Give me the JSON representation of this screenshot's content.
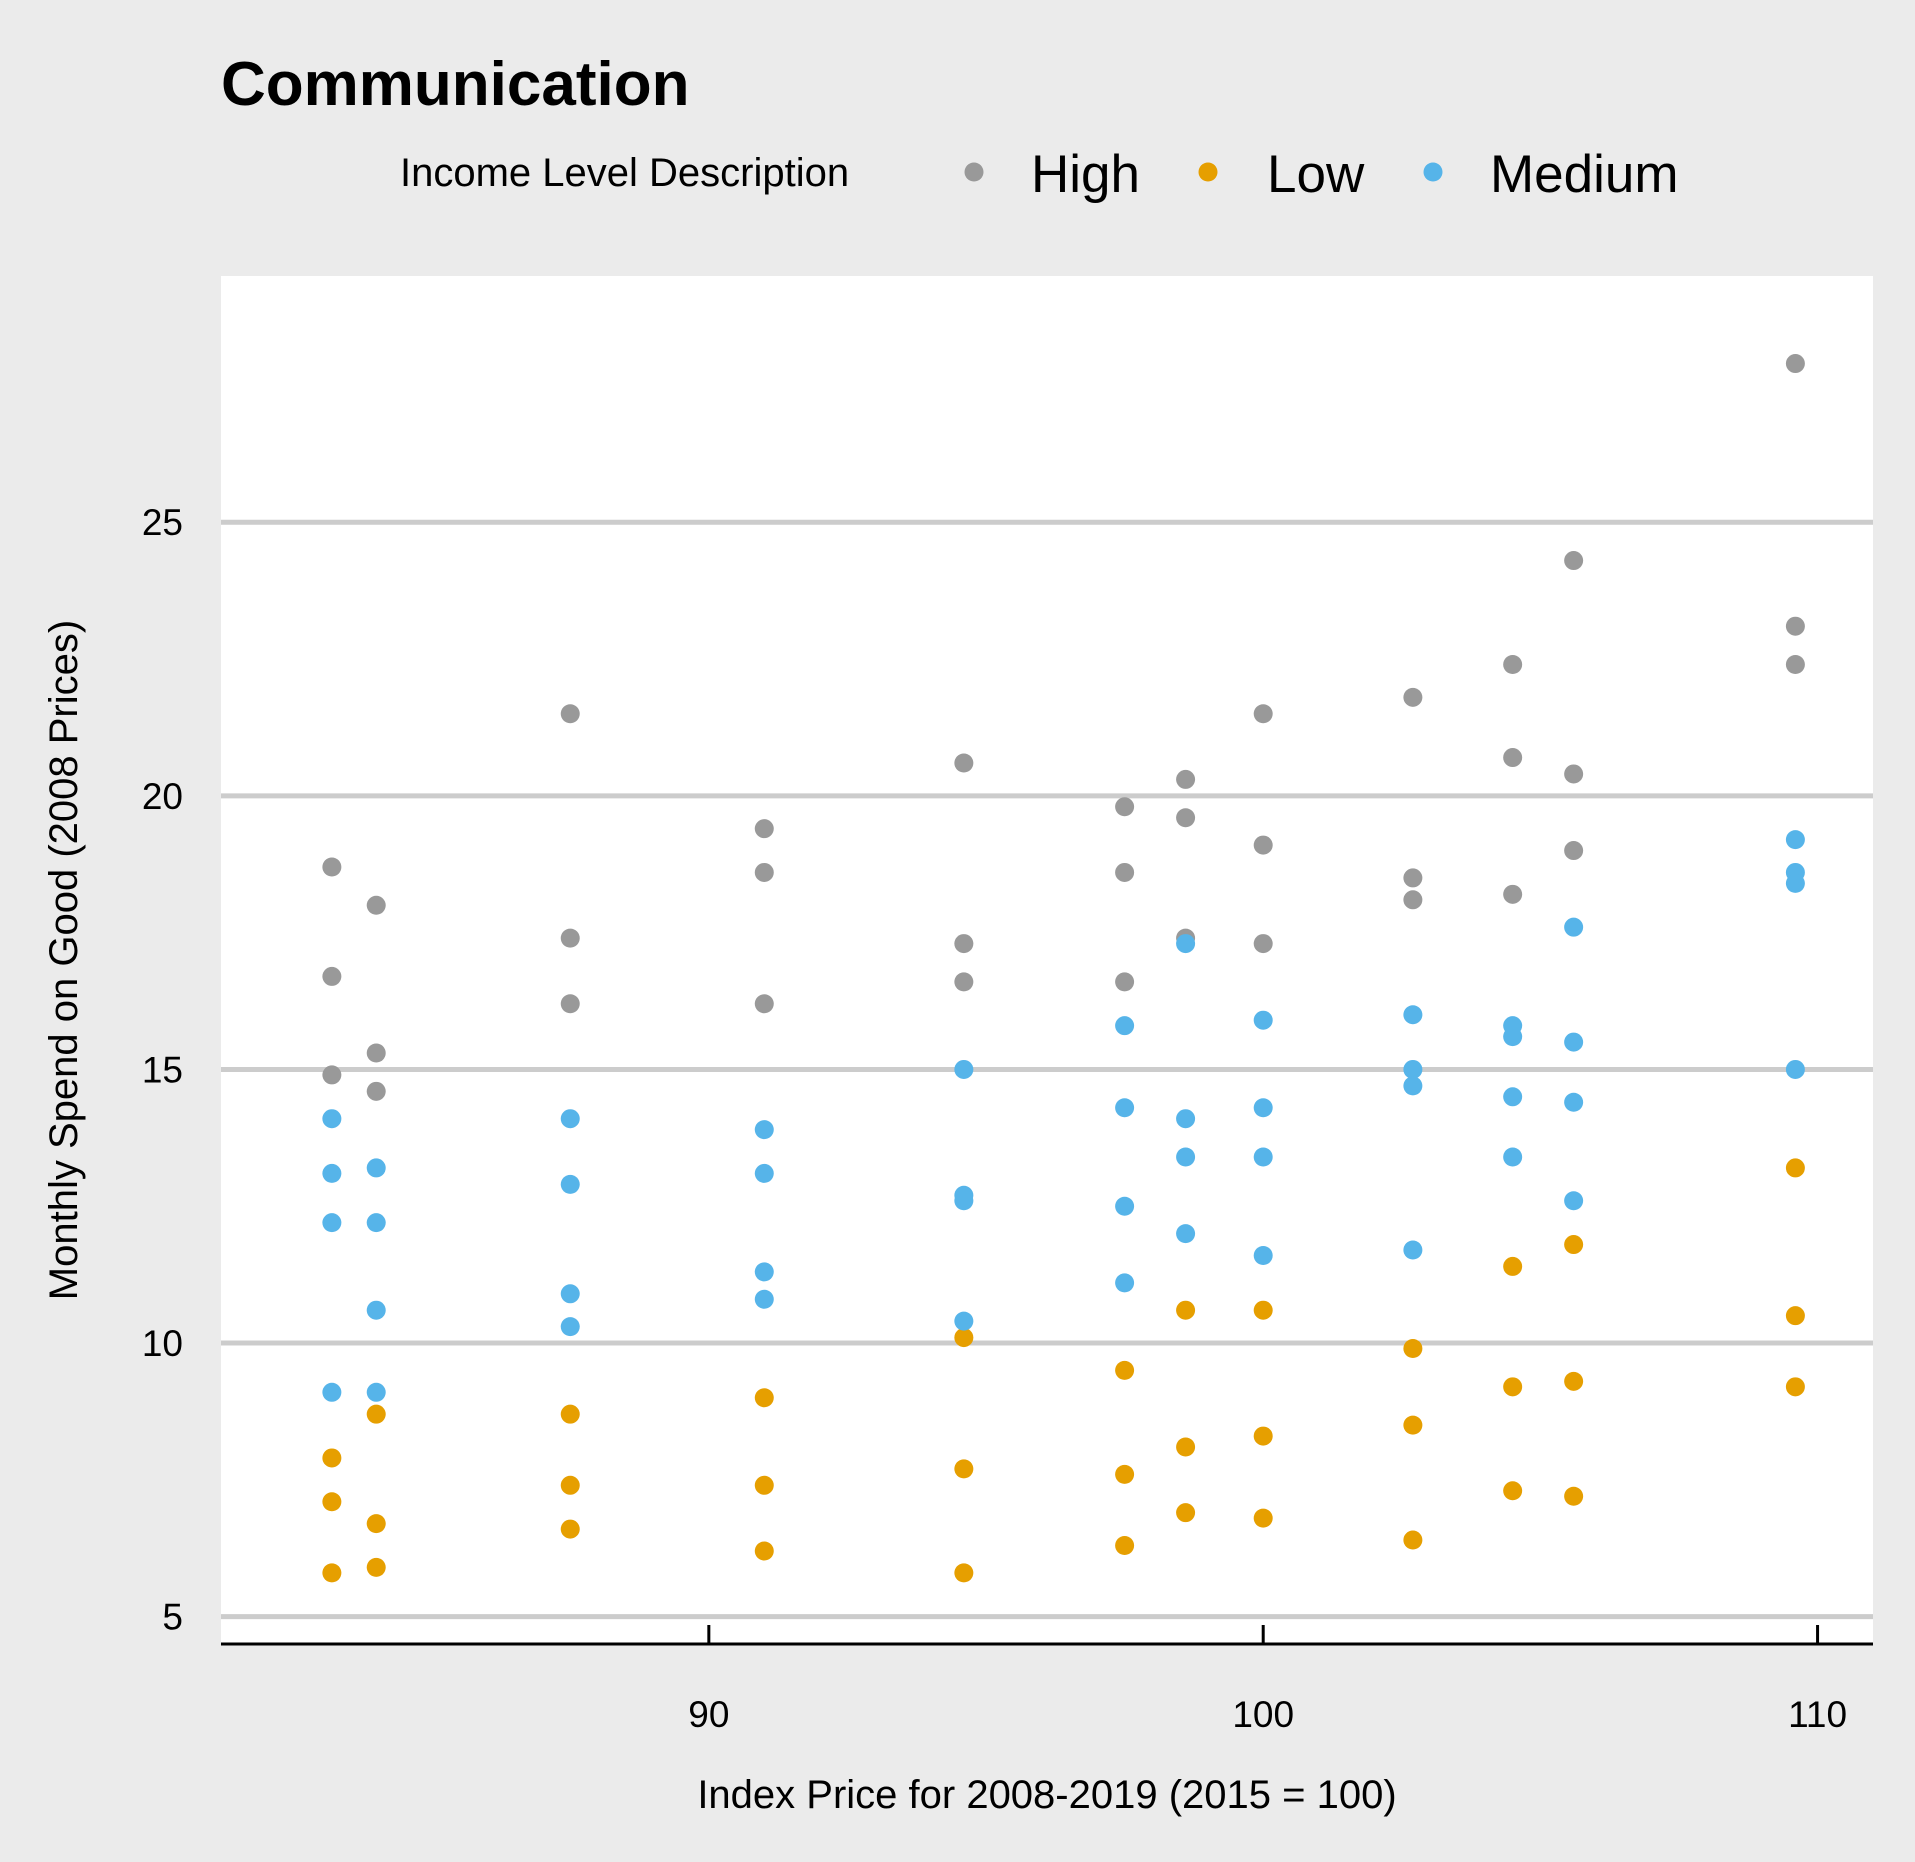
{
  "chart_data": {
    "type": "scatter",
    "title": "Communication",
    "xlabel": "Index Price for 2008-2019 (2015 = 100)",
    "ylabel": "Monthly Spend on Good (2008 Prices)",
    "xlim": [
      81.2,
      111
    ],
    "ylim": [
      4.5,
      29.5
    ],
    "xticks": [
      90,
      100,
      110
    ],
    "yticks": [
      5,
      10,
      15,
      20,
      25
    ],
    "grid": "horizontal",
    "legend": {
      "title": "Income Level Description",
      "position": "top"
    },
    "series": [
      {
        "name": "High",
        "color": "#999999",
        "points": [
          [
            83.2,
            18.7
          ],
          [
            83.2,
            16.7
          ],
          [
            83.2,
            14.9
          ],
          [
            84.0,
            18.0
          ],
          [
            84.0,
            15.3
          ],
          [
            84.0,
            14.6
          ],
          [
            87.5,
            21.5
          ],
          [
            87.5,
            17.4
          ],
          [
            87.5,
            16.2
          ],
          [
            91.0,
            19.4
          ],
          [
            91.0,
            18.6
          ],
          [
            91.0,
            16.2
          ],
          [
            94.6,
            20.6
          ],
          [
            94.6,
            17.3
          ],
          [
            94.6,
            16.6
          ],
          [
            97.5,
            19.8
          ],
          [
            97.5,
            18.6
          ],
          [
            97.5,
            16.6
          ],
          [
            98.6,
            20.3
          ],
          [
            98.6,
            19.6
          ],
          [
            98.6,
            17.4
          ],
          [
            100.0,
            21.5
          ],
          [
            100.0,
            19.1
          ],
          [
            100.0,
            17.3
          ],
          [
            102.7,
            21.8
          ],
          [
            102.7,
            18.5
          ],
          [
            102.7,
            18.1
          ],
          [
            104.5,
            22.4
          ],
          [
            104.5,
            20.7
          ],
          [
            104.5,
            18.2
          ],
          [
            105.6,
            24.3
          ],
          [
            105.6,
            20.4
          ],
          [
            105.6,
            19.0
          ],
          [
            109.6,
            27.9
          ],
          [
            109.6,
            23.1
          ],
          [
            109.6,
            22.4
          ]
        ]
      },
      {
        "name": "Low",
        "color": "#E69F00",
        "points": [
          [
            83.2,
            7.9
          ],
          [
            83.2,
            7.1
          ],
          [
            83.2,
            5.8
          ],
          [
            84.0,
            8.7
          ],
          [
            84.0,
            6.7
          ],
          [
            84.0,
            5.9
          ],
          [
            87.5,
            8.7
          ],
          [
            87.5,
            7.4
          ],
          [
            87.5,
            6.6
          ],
          [
            91.0,
            9.0
          ],
          [
            91.0,
            7.4
          ],
          [
            91.0,
            6.2
          ],
          [
            94.6,
            10.1
          ],
          [
            94.6,
            7.7
          ],
          [
            94.6,
            5.8
          ],
          [
            97.5,
            9.5
          ],
          [
            97.5,
            7.6
          ],
          [
            97.5,
            6.3
          ],
          [
            98.6,
            10.6
          ],
          [
            98.6,
            8.1
          ],
          [
            98.6,
            6.9
          ],
          [
            100.0,
            10.6
          ],
          [
            100.0,
            8.3
          ],
          [
            100.0,
            6.8
          ],
          [
            102.7,
            9.9
          ],
          [
            102.7,
            8.5
          ],
          [
            102.7,
            6.4
          ],
          [
            104.5,
            11.4
          ],
          [
            104.5,
            9.2
          ],
          [
            104.5,
            7.3
          ],
          [
            105.6,
            11.8
          ],
          [
            105.6,
            9.3
          ],
          [
            105.6,
            7.2
          ],
          [
            109.6,
            13.2
          ],
          [
            109.6,
            10.5
          ],
          [
            109.6,
            9.2
          ]
        ]
      },
      {
        "name": "Medium",
        "color": "#56B4E9",
        "points": [
          [
            83.2,
            14.1
          ],
          [
            83.2,
            13.1
          ],
          [
            83.2,
            12.2
          ],
          [
            83.2,
            9.1
          ],
          [
            84.0,
            13.2
          ],
          [
            84.0,
            12.2
          ],
          [
            84.0,
            10.6
          ],
          [
            84.0,
            9.1
          ],
          [
            87.5,
            14.1
          ],
          [
            87.5,
            12.9
          ],
          [
            87.5,
            10.9
          ],
          [
            87.5,
            10.3
          ],
          [
            91.0,
            13.9
          ],
          [
            91.0,
            13.1
          ],
          [
            91.0,
            11.3
          ],
          [
            91.0,
            10.8
          ],
          [
            94.6,
            15.0
          ],
          [
            94.6,
            12.7
          ],
          [
            94.6,
            12.6
          ],
          [
            94.6,
            10.4
          ],
          [
            97.5,
            15.8
          ],
          [
            97.5,
            14.3
          ],
          [
            97.5,
            12.5
          ],
          [
            97.5,
            11.1
          ],
          [
            98.6,
            17.3
          ],
          [
            98.6,
            14.1
          ],
          [
            98.6,
            13.4
          ],
          [
            98.6,
            12.0
          ],
          [
            100.0,
            15.9
          ],
          [
            100.0,
            14.3
          ],
          [
            100.0,
            13.4
          ],
          [
            100.0,
            11.6
          ],
          [
            102.7,
            16.0
          ],
          [
            102.7,
            15.0
          ],
          [
            102.7,
            14.7
          ],
          [
            102.7,
            11.7
          ],
          [
            104.5,
            15.8
          ],
          [
            104.5,
            15.6
          ],
          [
            104.5,
            14.5
          ],
          [
            104.5,
            13.4
          ],
          [
            105.6,
            17.6
          ],
          [
            105.6,
            15.5
          ],
          [
            105.6,
            14.4
          ],
          [
            105.6,
            12.6
          ],
          [
            109.6,
            19.2
          ],
          [
            109.6,
            18.6
          ],
          [
            109.6,
            18.4
          ],
          [
            109.6,
            15.0
          ]
        ]
      }
    ]
  }
}
